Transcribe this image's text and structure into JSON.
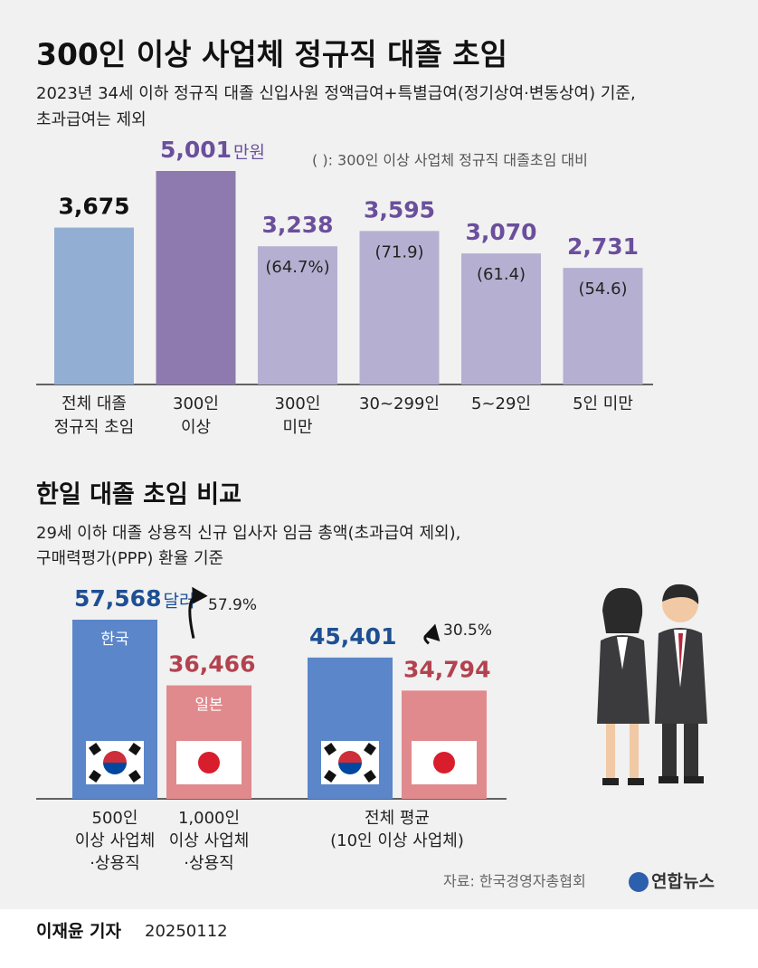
{
  "title": "300인 이상 사업체 정규직 대졸 초임",
  "subtitle": [
    "2023년 34세 이하 정규직 대졸 신입사원 정액급여+특별급여(정기상여·변동상여) 기준,",
    "초과급여는 제외"
  ],
  "chart_data": [
    {
      "type": "bar",
      "note": "( ): 300인 이상 사업체 정규직 대졸초임 대비",
      "unit": "만원",
      "categories": [
        "전체 대졸\n정규직 초임",
        "300인\n이상",
        "300인\n미만",
        "30~299인",
        "5~29인",
        "5인 미만"
      ],
      "values": [
        3675,
        5001,
        3238,
        3595,
        3070,
        2731
      ],
      "value_labels": [
        "3,675",
        "5,001",
        "3,238",
        "3,595",
        "3,070",
        "2,731"
      ],
      "ratio_labels": [
        null,
        null,
        "(64.7%)",
        "(71.9)",
        "(61.4)",
        "(54.6)"
      ],
      "colors": [
        "#93aed3",
        "#8e7aae",
        "#b5b0d1",
        "#b5b0d1",
        "#b5b0d1",
        "#b5b0d1"
      ],
      "label_colors": [
        "#111111",
        "#6b4f9c",
        "#6b4f9c",
        "#6b4f9c",
        "#6b4f9c",
        "#6b4f9c"
      ]
    },
    {
      "type": "paired-bar",
      "title": "한일 대졸 초임 비교",
      "subtitle": [
        "29세 이하 대졸 상용직 신규 입사자 임금 총액(초과급여 제외),",
        "구매력평가(PPP) 환율 기준"
      ],
      "unit": "달러",
      "series_names": [
        "한국",
        "일본"
      ],
      "colors": [
        "#5b86c9",
        "#e08a8d"
      ],
      "label_colors": [
        "#1d4f93",
        "#b3424f"
      ],
      "groups": [
        {
          "categories": [
            "500인\n이상 사업체\n·상용직",
            "1,000인\n이상 사업체\n·상용직"
          ],
          "values": [
            57568,
            36466
          ],
          "value_labels": [
            "57,568",
            "36,466"
          ],
          "gap_label": "57.9%"
        },
        {
          "categories": [
            "전체 평균\n(10인 이상 사업체)"
          ],
          "values": [
            45401,
            34794
          ],
          "value_labels": [
            "45,401",
            "34,794"
          ],
          "gap_label": "30.5%"
        }
      ]
    }
  ],
  "source": "자료: 한국경영자총협회",
  "logo": "연합뉴스",
  "byline": "이재윤 기자",
  "date": "20250112"
}
